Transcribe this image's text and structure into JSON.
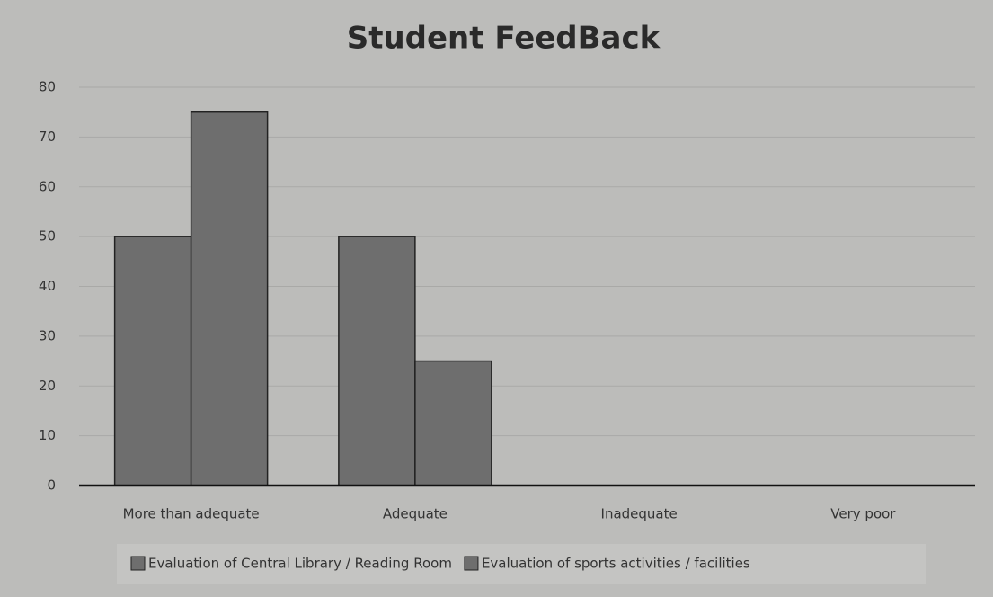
{
  "chart_data": {
    "type": "bar",
    "title": "Student FeedBack",
    "categories": [
      "More than adequate",
      "Adequate",
      "Inadequate",
      "Very poor"
    ],
    "series": [
      {
        "name": "Evaluation of Central Library / Reading Room",
        "color": "#6e6e6e",
        "values": [
          50,
          50,
          0,
          0
        ]
      },
      {
        "name": "Evaluation of sports activities / facilities",
        "color": "#6e6e6e",
        "values": [
          75,
          25,
          0,
          0
        ]
      }
    ],
    "ylim": [
      0,
      80
    ],
    "yticks": [
      0,
      10,
      20,
      30,
      40,
      50,
      60,
      70,
      80
    ],
    "grid": true,
    "legend": "bottom"
  }
}
